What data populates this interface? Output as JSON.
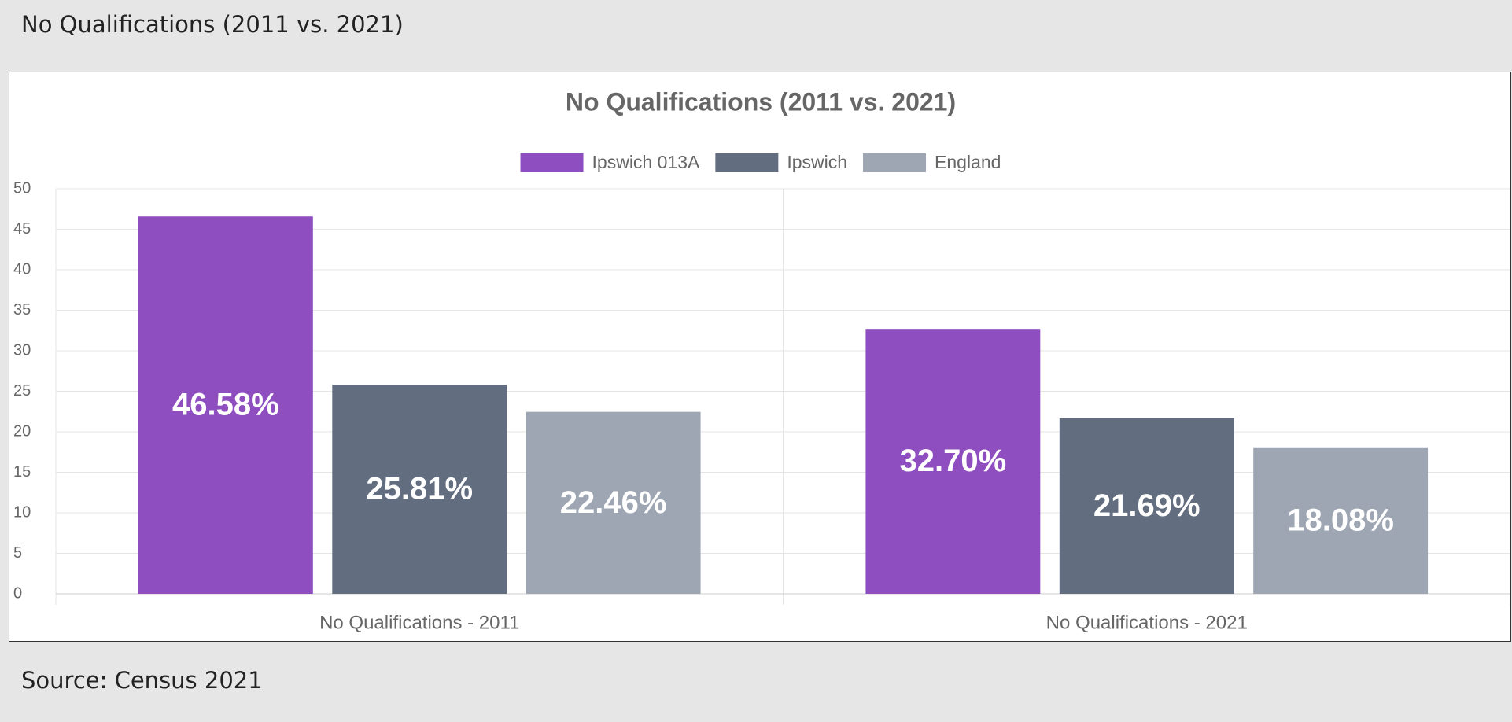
{
  "header": {
    "title": "No Qualifications (2011 vs. 2021)"
  },
  "chart_data": {
    "type": "bar",
    "title": "No Qualifications (2011 vs. 2021)",
    "categories": [
      "No Qualifications - 2011",
      "No Qualifications - 2021"
    ],
    "series": [
      {
        "name": "Ipswich 013A",
        "color": "#8e4ec0",
        "values": [
          46.58,
          32.7
        ],
        "value_labels": [
          "46.58%",
          "32.70%"
        ]
      },
      {
        "name": "Ipswich",
        "color": "#626d7f",
        "values": [
          25.81,
          21.69
        ],
        "value_labels": [
          "25.81%",
          "21.69%"
        ]
      },
      {
        "name": "England",
        "color": "#9ea5b3",
        "values": [
          22.46,
          18.08
        ],
        "value_labels": [
          "22.46%",
          "18.08%"
        ]
      }
    ],
    "ylim": [
      0,
      50
    ],
    "yticks": [
      0,
      5,
      10,
      15,
      20,
      25,
      30,
      35,
      40,
      45,
      50
    ],
    "grid": true,
    "legend": "top"
  },
  "footer": {
    "source": "Source: Census 2021"
  }
}
